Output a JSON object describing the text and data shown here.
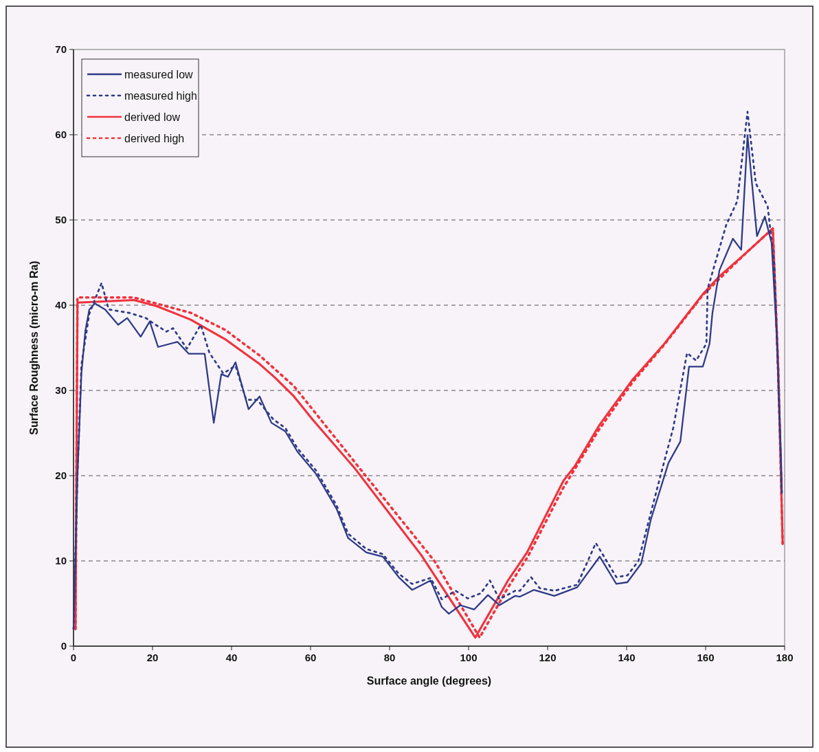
{
  "chart_data": {
    "type": "line",
    "xlabel": "Surface angle (degrees)",
    "ylabel": "Surface Roughness (micro-m Ra)",
    "xlim": [
      0,
      180
    ],
    "xticks": [
      0,
      20,
      40,
      60,
      80,
      100,
      120,
      140,
      160,
      180
    ],
    "ylim": [
      0,
      70
    ],
    "yticks": [
      0,
      10,
      20,
      30,
      40,
      50,
      60,
      70
    ],
    "grid": "y",
    "legend": "top left",
    "marker": "none",
    "series": [
      {
        "name": "measured low",
        "color": "#2e3a87",
        "line_style": "solid",
        "x": [
          0,
          1,
          2,
          3,
          4,
          5.4,
          8,
          11.3,
          13.6,
          17,
          19.3,
          21.4,
          26.3,
          29.2,
          33.2,
          35.5,
          37.4,
          39.1,
          41,
          44.3,
          47.1,
          50.1,
          53.6,
          56.7,
          61.4,
          66.6,
          69.5,
          74.1,
          78.3,
          82.3,
          85.7,
          90.4,
          93.2,
          95,
          97.9,
          101.4,
          104.9,
          107.8,
          111.8,
          113,
          116.5,
          121.7,
          127.5,
          133.2,
          137.4,
          140.2,
          143.7,
          146.1,
          150.6,
          153.6,
          155.8,
          159.3,
          161,
          161.7,
          163.5,
          166.9,
          169,
          170.6,
          173,
          175,
          176.7,
          178,
          179.1,
          179.3
        ],
        "values": [
          2,
          20,
          32,
          37,
          39.5,
          40.2,
          39.5,
          37.7,
          38.5,
          36.3,
          38.1,
          35.1,
          35.7,
          34.3,
          34.3,
          26.2,
          31.9,
          31.6,
          33.3,
          27.8,
          29.3,
          26.2,
          25.2,
          22.8,
          20.2,
          16.1,
          12.7,
          11,
          10.5,
          8.1,
          6.6,
          7.7,
          4.6,
          3.8,
          4.8,
          4.3,
          6,
          4.8,
          5.9,
          5.8,
          6.6,
          5.9,
          6.9,
          10.5,
          7.3,
          7.5,
          9.7,
          14.8,
          21.5,
          24,
          32.8,
          32.8,
          35.5,
          39,
          44.1,
          47.8,
          46.5,
          59.9,
          48.1,
          50.4,
          47.3,
          36.5,
          22,
          18
        ]
      },
      {
        "name": "measured high",
        "color": "#2e3a87",
        "line_style": "dotted",
        "x": [
          0,
          1,
          2,
          4,
          7.1,
          8.9,
          14.1,
          18.3,
          19.8,
          23.5,
          25.2,
          28.7,
          32.2,
          34.4,
          37.9,
          41,
          43.7,
          46.5,
          50.6,
          53.6,
          56.7,
          61.4,
          66.6,
          69.5,
          74.1,
          78.3,
          82.3,
          85.7,
          90.4,
          93.2,
          96.7,
          99.8,
          103.1,
          105.4,
          107.8,
          111.8,
          113,
          115.8,
          118,
          121.7,
          127.5,
          132.2,
          137.4,
          140.2,
          143,
          146.1,
          149.6,
          151.8,
          155.3,
          157.6,
          160.2,
          160.5,
          165.2,
          168,
          170.6,
          172.7,
          175.7,
          177.4,
          179.3
        ],
        "values": [
          2,
          20,
          33,
          39,
          42.6,
          39.5,
          39.1,
          38.5,
          38,
          36.9,
          37.3,
          34.9,
          37.7,
          34.4,
          32,
          32.9,
          28.9,
          28.9,
          26.6,
          25.6,
          23.2,
          20.6,
          16.5,
          13.2,
          11.4,
          10.8,
          8.5,
          7.3,
          8,
          5.5,
          6.5,
          5.6,
          6.2,
          7.7,
          5.5,
          6.5,
          6.5,
          8.1,
          6.8,
          6.5,
          7.2,
          12.1,
          8.1,
          8.3,
          10,
          15.6,
          21.8,
          25.6,
          34.4,
          33.5,
          35.5,
          41.9,
          49.4,
          52.2,
          62.7,
          54.3,
          51.6,
          44.6,
          18
        ]
      },
      {
        "name": "derived low",
        "color": "#f0323c",
        "line_style": "solid",
        "x": [
          0.5,
          1,
          15.3,
          21,
          29.7,
          38.4,
          47.1,
          51,
          55.8,
          60.5,
          71.3,
          88,
          101.7,
          110.1,
          114.8,
          124,
          127,
          133.2,
          141.4,
          149.6,
          159.3,
          163.5,
          170.4,
          177,
          178.4,
          179.5
        ],
        "values": [
          2,
          40.3,
          40.6,
          39.9,
          38.3,
          36,
          33.1,
          31.5,
          29.3,
          26.6,
          20.8,
          10.7,
          1,
          7.8,
          11,
          19.4,
          21.2,
          26,
          31.2,
          35.5,
          41.3,
          43.4,
          46.2,
          49,
          32.3,
          12
        ]
      },
      {
        "name": "derived high",
        "color": "#f0323c",
        "line_style": "dotted",
        "x": [
          0.5,
          1,
          15.3,
          29.7,
          38.4,
          47.1,
          55.8,
          74.1,
          91.5,
          102.8,
          110,
          115,
          124,
          133,
          141.4,
          149.6,
          159.3,
          170.4,
          177,
          178.4,
          179.5
        ],
        "values": [
          2,
          40.9,
          40.9,
          39.1,
          37.1,
          34.1,
          30.5,
          19.9,
          9.9,
          1,
          6.9,
          10.5,
          18.6,
          25.4,
          30.9,
          35.4,
          41.2,
          46.2,
          49,
          32.3,
          12
        ]
      }
    ]
  }
}
